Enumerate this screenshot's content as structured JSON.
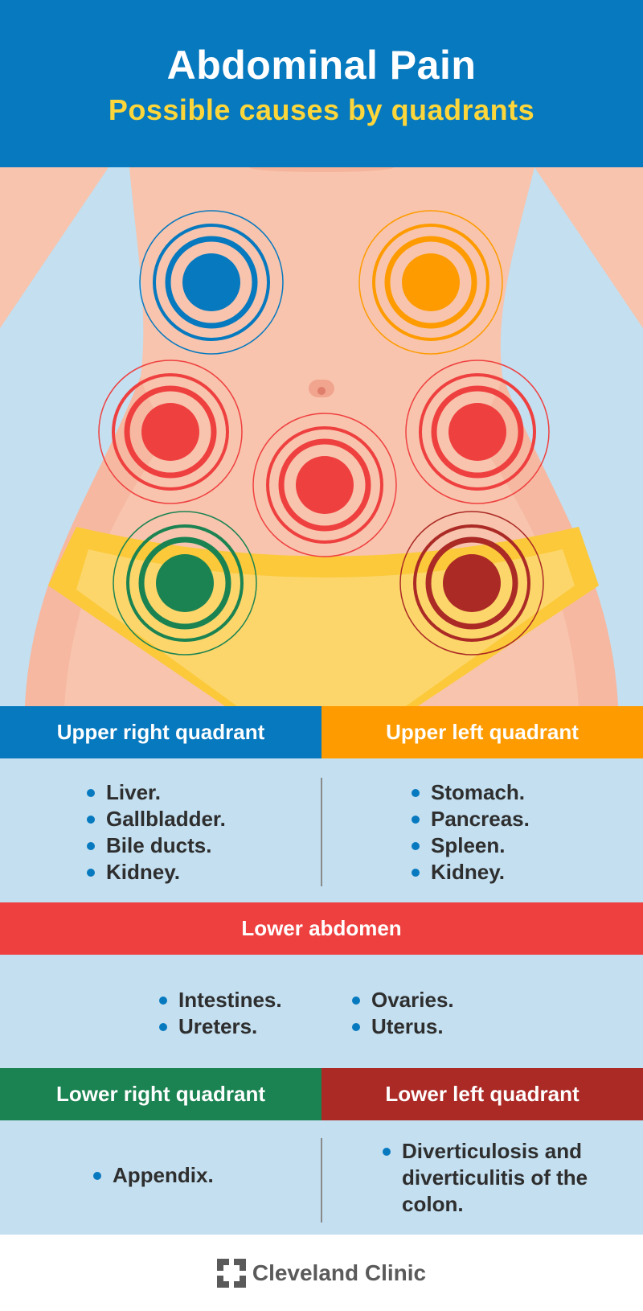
{
  "header": {
    "title": "Abdominal Pain",
    "subtitle": "Possible causes by quadrants"
  },
  "colors": {
    "blue": "#0779bf",
    "orange": "#fe9b00",
    "red": "#ef4040",
    "green": "#1b8352",
    "dark_red": "#ab2a26",
    "panel": "#c3dff0",
    "skin": "#f8c4ad",
    "briefs": "#fcd66b"
  },
  "upper": {
    "right": {
      "label": "Upper right quadrant",
      "items": [
        "Liver.",
        "Gallbladder.",
        "Bile ducts.",
        "Kidney."
      ]
    },
    "left": {
      "label": "Upper left quadrant",
      "items": [
        "Stomach.",
        "Pancreas.",
        "Spleen.",
        "Kidney."
      ]
    }
  },
  "lower_abdomen": {
    "label": "Lower abdomen",
    "col1": [
      "Intestines.",
      "Ureters."
    ],
    "col2": [
      "Ovaries.",
      "Uterus."
    ]
  },
  "lower": {
    "right": {
      "label": "Lower right quadrant",
      "items": [
        "Appendix."
      ]
    },
    "left": {
      "label": "Lower left quadrant",
      "items": [
        "Diverticulosis and diverticulitis of the colon."
      ]
    }
  },
  "footer": {
    "logo_text": "Cleveland Clinic"
  }
}
